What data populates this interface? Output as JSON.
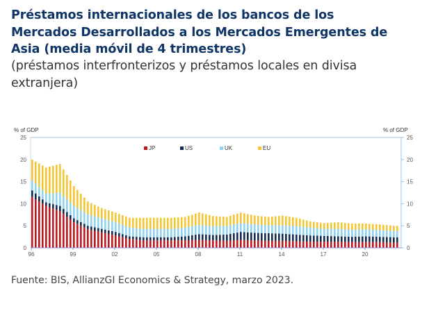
{
  "header": {
    "title_lines": [
      "Préstamos internacionales de los bancos de los",
      "Mercados Desarrollados a los Mercados Emergentes de",
      "Asia (media móvil de 4 trimestres)"
    ],
    "subtitle_lines": [
      "(préstamos interfronterizos y préstamos locales en divisa",
      "extranjera)"
    ]
  },
  "footer": {
    "source": "Fuente: BIS, AllianzGI Economics & Strategy, marzo 2023."
  },
  "chart_data": {
    "type": "bar",
    "stacked": true,
    "title": "Préstamos internacionales de los bancos de los Mercados Desarrollados a los Mercados Emergentes de Asia (media móvil de 4 trimestres)",
    "ylabel_left": "% of GDP",
    "ylabel_right": "% of GDP",
    "ylim": [
      0,
      25
    ],
    "yticks": [
      0,
      5,
      10,
      15,
      20,
      25
    ],
    "yticks_right": [
      0,
      5,
      10,
      15,
      20,
      25
    ],
    "xtick_labels": [
      "96",
      "99",
      "02",
      "05",
      "08",
      "11",
      "14",
      "17",
      "20"
    ],
    "x_start": "1996Q1",
    "x_frequency": "quarterly",
    "legend_position": "top",
    "colors": {
      "JP": "#c0161e",
      "US": "#122b4e",
      "UK": "#8fd3f0",
      "EU": "#f5c631"
    },
    "years": [
      1996,
      1997,
      1998,
      1999,
      2000,
      2001,
      2002,
      2003,
      2004,
      2005,
      2006,
      2007,
      2008,
      2009,
      2010,
      2011,
      2012,
      2013,
      2014,
      2015,
      2016,
      2017,
      2018,
      2019,
      2020,
      2021,
      2022
    ],
    "series": [
      {
        "name": "JP",
        "annual": [
          11.5,
          9.5,
          8.3,
          5.8,
          4.2,
          3.5,
          2.8,
          2.0,
          1.7,
          1.7,
          1.7,
          1.7,
          1.8,
          1.7,
          1.6,
          1.8,
          1.7,
          1.6,
          1.6,
          1.5,
          1.4,
          1.4,
          1.4,
          1.3,
          1.3,
          1.3,
          1.2
        ]
      },
      {
        "name": "US",
        "annual": [
          1.5,
          0.8,
          1.2,
          0.9,
          0.8,
          0.8,
          0.8,
          0.6,
          0.7,
          0.7,
          0.7,
          0.9,
          1.3,
          1.2,
          1.4,
          1.8,
          1.7,
          1.7,
          1.6,
          1.5,
          1.4,
          1.3,
          1.2,
          1.2,
          1.3,
          1.2,
          1.2
        ]
      },
      {
        "name": "UK",
        "annual": [
          2.3,
          2.0,
          3.0,
          2.8,
          2.6,
          2.4,
          2.2,
          2.0,
          1.9,
          1.9,
          1.9,
          2.0,
          2.1,
          2.0,
          2.0,
          2.0,
          1.9,
          1.8,
          1.9,
          1.9,
          1.8,
          1.6,
          1.7,
          1.6,
          1.6,
          1.5,
          1.4
        ]
      },
      {
        "name": "EU",
        "annual": [
          4.7,
          5.9,
          6.5,
          4.5,
          2.9,
          2.3,
          2.2,
          2.2,
          2.5,
          2.5,
          2.5,
          2.4,
          2.8,
          2.3,
          2.0,
          2.4,
          2.0,
          1.9,
          2.2,
          1.9,
          1.4,
          1.3,
          1.5,
          1.4,
          1.3,
          1.3,
          1.2
        ]
      }
    ],
    "legend": [
      "JP",
      "US",
      "UK",
      "EU"
    ],
    "n_quarters": 106
  }
}
